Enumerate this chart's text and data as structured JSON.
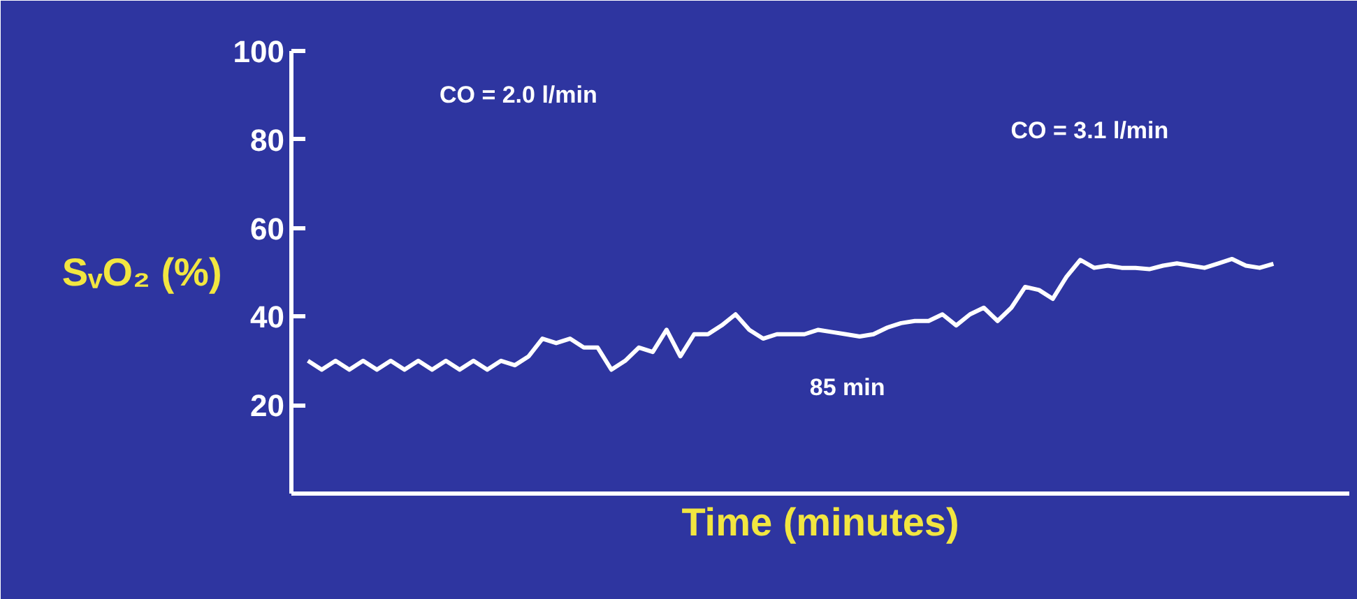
{
  "chart_data": {
    "type": "line",
    "xlabel": "Time (minutes)",
    "ylabel": "SᵥO₂ (%)",
    "categories": [
      null,
      null,
      null,
      null,
      null,
      null,
      null,
      null,
      null,
      null,
      null,
      null,
      null,
      null,
      null,
      null,
      null,
      null,
      null,
      null,
      null,
      null,
      null,
      null,
      null,
      null,
      null,
      null,
      null,
      null,
      null,
      null,
      null,
      null,
      null,
      null,
      null,
      null,
      null,
      null,
      null,
      null,
      null,
      null,
      null,
      null,
      null,
      null,
      null,
      null,
      null,
      null,
      null,
      null,
      null,
      null,
      null,
      null,
      null,
      null,
      null,
      null,
      null,
      null,
      null,
      null,
      null,
      null,
      null,
      null,
      null
    ],
    "series": [
      {
        "color": "#ffffff",
        "values": [
          30,
          28,
          30,
          28,
          30,
          28,
          30,
          28,
          30,
          28,
          30,
          28,
          30,
          28,
          30,
          29,
          31,
          35,
          34,
          35,
          33,
          33,
          28,
          30,
          33,
          32,
          37,
          31,
          36,
          36,
          38,
          40.5,
          37,
          35,
          36,
          36,
          36,
          37,
          36.5,
          36,
          35.5,
          36,
          37.5,
          38.5,
          39,
          39,
          40.5,
          38,
          40.5,
          42,
          39,
          42,
          46.7,
          46,
          44,
          49,
          52.8,
          51,
          51.5,
          51,
          51,
          50.7,
          51.5,
          52,
          51.5,
          51,
          52,
          53,
          51.5,
          51,
          51.9
        ]
      }
    ],
    "ylim": [
      0,
      100
    ],
    "yticks": [
      20,
      40,
      60,
      80,
      100
    ],
    "tick_labels": "y",
    "grid": false,
    "marker": "none",
    "line_style": "solid",
    "annotations": [
      "CO = 2.0 l/min",
      "CO = 3.1 l/min",
      "85 min"
    ]
  }
}
